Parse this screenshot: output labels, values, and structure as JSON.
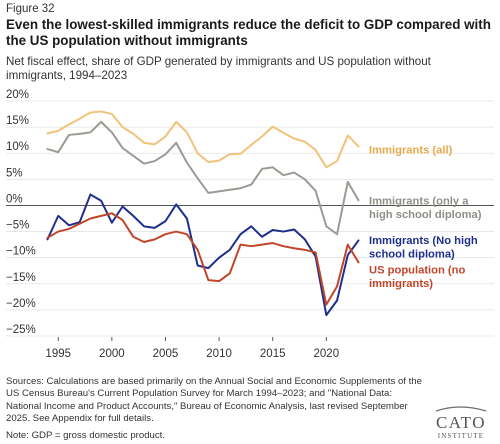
{
  "figure_label": "Figure 32",
  "title": "Even the lowest-skilled immigrants reduce the deficit to GDP compared with the US population without immigrants",
  "subtitle": "Net fiscal effect, share of GDP generated by immigrants and US population without immigrants, 1994–2023",
  "sources": "Sources: Calculations are based primarily on the Annual Social and Economic Supplements of the US Census Bureau's Current Population Survey for March 1994–2023; and \"National Data: National Income and Product Accounts,\" Bureau of Economic Analysis, last revised September 2025. See Appendix for full details.",
  "note": "Note: GDP = gross domestic product.",
  "logo": {
    "line1": "CATO",
    "line2": "INSTITUTE"
  },
  "chart_data": {
    "type": "line",
    "x": [
      1994,
      1995,
      1996,
      1997,
      1998,
      1999,
      2000,
      2001,
      2002,
      2003,
      2004,
      2005,
      2006,
      2007,
      2008,
      2009,
      2010,
      2011,
      2012,
      2013,
      2014,
      2015,
      2016,
      2017,
      2018,
      2019,
      2020,
      2021,
      2022,
      2023
    ],
    "xticks": [
      1995,
      2000,
      2005,
      2010,
      2015,
      2020
    ],
    "yticks": [
      20,
      15,
      10,
      5,
      0,
      -5,
      -10,
      -15,
      -20,
      -25
    ],
    "ytick_labels": [
      "20%",
      "15%",
      "10%",
      "5%",
      "0%",
      "−5%",
      "−10%",
      "−15%",
      "−20%",
      "−25%"
    ],
    "ylim": [
      -25,
      20
    ],
    "xlim": [
      1993.3,
      2023.7
    ],
    "grid": true,
    "zero_line": true,
    "series": [
      {
        "name": "Immigrants (all)",
        "label_lines": [
          "Immigrants (all)"
        ],
        "color": "#f2c27a",
        "values": [
          13.8,
          14.3,
          15.5,
          16.6,
          17.8,
          18.0,
          17.5,
          15.0,
          13.7,
          12.0,
          11.7,
          13.2,
          16.0,
          14.0,
          10.0,
          8.3,
          8.6,
          9.8,
          9.9,
          11.6,
          13.2,
          15.1,
          13.9,
          12.8,
          12.2,
          10.6,
          7.3,
          8.5,
          13.4,
          11.3
        ]
      },
      {
        "name": "Immigrants (only a high school diploma)",
        "label_lines": [
          "Immigrants (only a",
          "high school diploma)"
        ],
        "color": "#9b9b94",
        "values": [
          10.8,
          10.2,
          13.5,
          13.7,
          14.0,
          16.0,
          14.0,
          11.0,
          9.5,
          8.0,
          8.5,
          9.8,
          12.0,
          8.2,
          5.2,
          2.4,
          2.7,
          3.0,
          3.3,
          4.0,
          7.0,
          7.3,
          5.8,
          6.3,
          5.0,
          2.8,
          -4.0,
          -5.5,
          4.5,
          1.0
        ]
      },
      {
        "name": "Immigrants (No high school diploma)",
        "label_lines": [
          "Immigrants (No high",
          "school diploma)"
        ],
        "color": "#1f2f8c",
        "values": [
          -6.5,
          -2.0,
          -3.8,
          -3.2,
          2.1,
          0.9,
          -3.3,
          -0.2,
          -2.0,
          -4.0,
          -4.3,
          -3.0,
          0.2,
          -2.5,
          -11.5,
          -12.0,
          -10.0,
          -8.5,
          -5.5,
          -4.0,
          -6.0,
          -4.7,
          -5.0,
          -4.6,
          -6.5,
          -9.8,
          -21.0,
          -18.2,
          -9.5,
          -6.7
        ]
      },
      {
        "name": "US population (no immigrants)",
        "label_lines": [
          "US population (no",
          "immigrants)"
        ],
        "color": "#c0462a",
        "values": [
          -6.2,
          -5.0,
          -4.5,
          -3.5,
          -2.5,
          -2.0,
          -1.5,
          -2.8,
          -6.0,
          -7.0,
          -6.5,
          -5.5,
          -5.0,
          -5.5,
          -8.5,
          -14.3,
          -14.5,
          -13.0,
          -7.5,
          -7.8,
          -7.5,
          -7.2,
          -7.8,
          -8.2,
          -8.5,
          -9.0,
          -19.0,
          -15.5,
          -7.5,
          -10.9
        ]
      }
    ]
  }
}
